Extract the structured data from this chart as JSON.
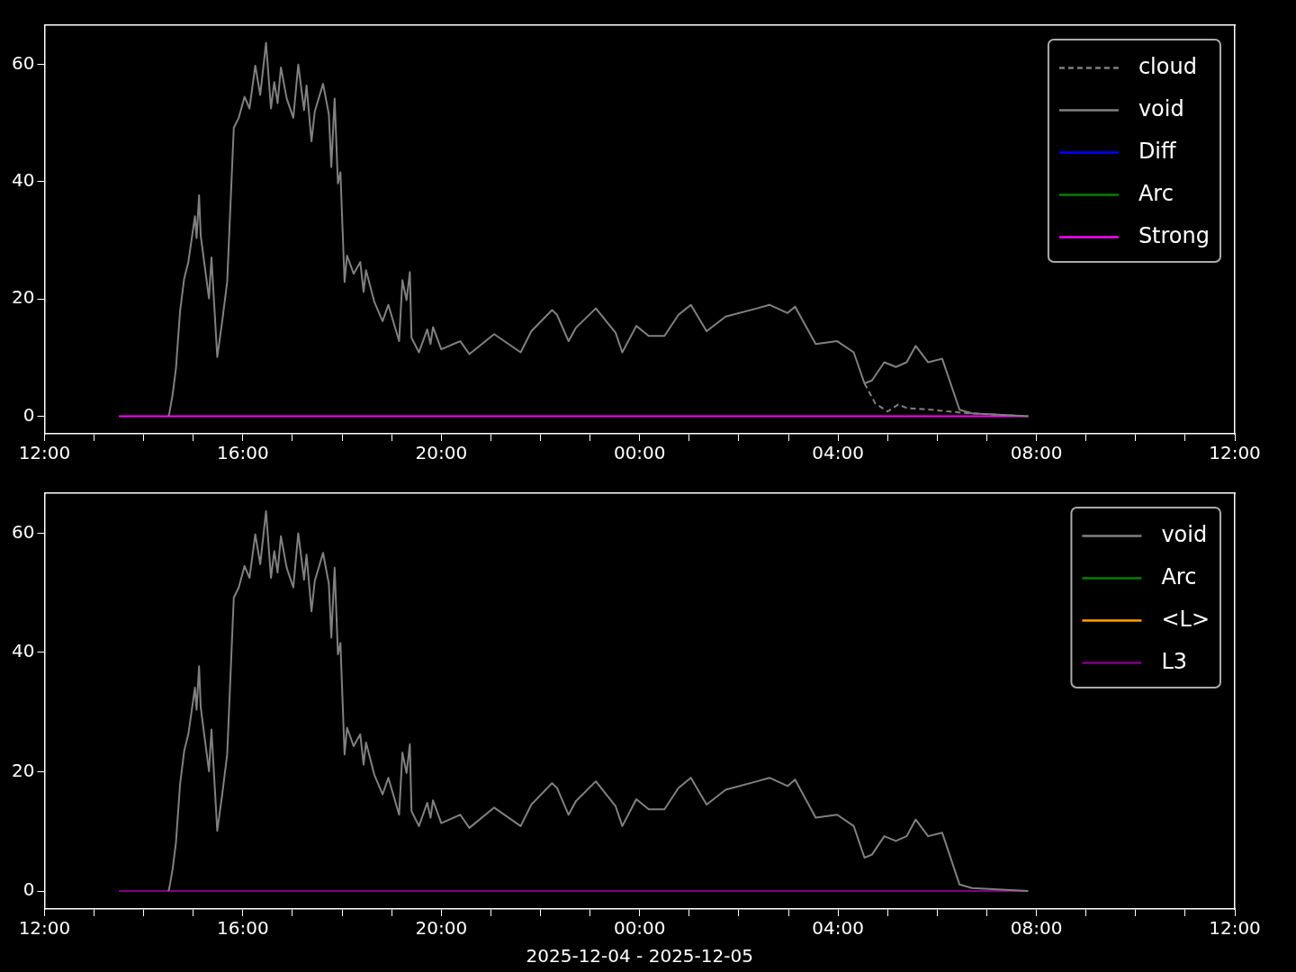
{
  "chart_data": [
    {
      "type": "line",
      "marker": "none",
      "legend": "top right",
      "grid": false,
      "xlim": [
        "2025-12-04T12:00",
        "2025-12-05T12:00"
      ],
      "ylim": [
        -3,
        66.7
      ],
      "yticks": [
        0,
        20,
        40,
        60
      ],
      "xticks": [
        {
          "value": "2025-12-04T12:00",
          "label": "12:00"
        },
        {
          "value": "2025-12-04T13:00",
          "label": null
        },
        {
          "value": "2025-12-04T14:00",
          "label": null
        },
        {
          "value": "2025-12-04T15:00",
          "label": null
        },
        {
          "value": "2025-12-04T16:00",
          "label": "16:00"
        },
        {
          "value": "2025-12-04T17:00",
          "label": null
        },
        {
          "value": "2025-12-04T18:00",
          "label": null
        },
        {
          "value": "2025-12-04T19:00",
          "label": null
        },
        {
          "value": "2025-12-04T20:00",
          "label": "20:00"
        },
        {
          "value": "2025-12-04T21:00",
          "label": null
        },
        {
          "value": "2025-12-04T22:00",
          "label": null
        },
        {
          "value": "2025-12-04T23:00",
          "label": null
        },
        {
          "value": "2025-12-05T00:00",
          "label": "00:00"
        },
        {
          "value": "2025-12-05T01:00",
          "label": null
        },
        {
          "value": "2025-12-05T02:00",
          "label": null
        },
        {
          "value": "2025-12-05T03:00",
          "label": null
        },
        {
          "value": "2025-12-05T04:00",
          "label": "04:00"
        },
        {
          "value": "2025-12-05T05:00",
          "label": null
        },
        {
          "value": "2025-12-05T06:00",
          "label": null
        },
        {
          "value": "2025-12-05T07:00",
          "label": null
        },
        {
          "value": "2025-12-05T08:00",
          "label": "08:00"
        },
        {
          "value": "2025-12-05T09:00",
          "label": null
        },
        {
          "value": "2025-12-05T10:00",
          "label": null
        },
        {
          "value": "2025-12-05T11:00",
          "label": null
        },
        {
          "value": "2025-12-05T12:00",
          "label": "12:00"
        }
      ],
      "series": [
        {
          "name": "cloud",
          "color": "#808080",
          "line_style": "dashed",
          "x": [
            "2025-12-05T04:32",
            "2025-12-05T04:45",
            "2025-12-05T05:00",
            "2025-12-05T05:13",
            "2025-12-05T05:23",
            "2025-12-05T05:53",
            "2025-12-05T06:15",
            "2025-12-05T06:36",
            "2025-12-05T07:50"
          ],
          "values": [
            5.6,
            2.2,
            0.8,
            2.0,
            1.4,
            1.1,
            0.8,
            0.5,
            0
          ]
        },
        {
          "name": "void",
          "color": "#808080",
          "x": [
            "2025-12-04T14:30",
            "2025-12-04T14:31",
            "2025-12-04T14:35",
            "2025-12-04T14:39",
            "2025-12-04T14:44",
            "2025-12-04T14:49",
            "2025-12-04T14:54",
            "2025-12-04T15:02",
            "2025-12-04T15:04",
            "2025-12-04T15:07",
            "2025-12-04T15:09",
            "2025-12-04T15:19",
            "2025-12-04T15:22",
            "2025-12-04T15:29",
            "2025-12-04T15:35",
            "2025-12-04T15:41",
            "2025-12-04T15:49",
            "2025-12-04T15:55",
            "2025-12-04T16:02",
            "2025-12-04T16:08",
            "2025-12-04T16:15",
            "2025-12-04T16:21",
            "2025-12-04T16:28",
            "2025-12-04T16:34",
            "2025-12-04T16:38",
            "2025-12-04T16:42",
            "2025-12-04T16:46",
            "2025-12-04T16:53",
            "2025-12-04T17:01",
            "2025-12-04T17:07",
            "2025-12-04T17:14",
            "2025-12-04T17:17",
            "2025-12-04T17:23",
            "2025-12-04T17:27",
            "2025-12-04T17:37",
            "2025-12-04T17:44",
            "2025-12-04T17:47",
            "2025-12-04T17:51",
            "2025-12-04T17:55",
            "2025-12-04T17:58",
            "2025-12-04T18:03",
            "2025-12-04T18:06",
            "2025-12-04T18:14",
            "2025-12-04T18:22",
            "2025-12-04T18:26",
            "2025-12-04T18:29",
            "2025-12-04T18:39",
            "2025-12-04T18:49",
            "2025-12-04T18:56",
            "2025-12-04T19:09",
            "2025-12-04T19:13",
            "2025-12-04T19:18",
            "2025-12-04T19:22",
            "2025-12-04T19:24",
            "2025-12-04T19:33",
            "2025-12-04T19:43",
            "2025-12-04T19:47",
            "2025-12-04T19:50",
            "2025-12-04T20:00",
            "2025-12-04T20:23",
            "2025-12-04T20:34",
            "2025-12-04T21:04",
            "2025-12-04T21:36",
            "2025-12-04T21:49",
            "2025-12-04T22:14",
            "2025-12-04T22:20",
            "2025-12-04T22:34",
            "2025-12-04T22:43",
            "2025-12-04T23:07",
            "2025-12-04T23:31",
            "2025-12-04T23:39",
            "2025-12-04T23:56",
            "2025-12-05T00:11",
            "2025-12-05T00:30",
            "2025-12-05T00:47",
            "2025-12-05T01:02",
            "2025-12-05T01:21",
            "2025-12-05T01:44",
            "2025-12-05T02:22",
            "2025-12-05T02:37",
            "2025-12-05T02:59",
            "2025-12-05T03:08",
            "2025-12-05T03:33",
            "2025-12-05T03:59",
            "2025-12-05T04:19",
            "2025-12-05T04:32",
            "2025-12-05T04:41",
            "2025-12-05T04:56",
            "2025-12-05T05:10",
            "2025-12-05T05:23",
            "2025-12-05T05:34",
            "2025-12-05T05:49",
            "2025-12-05T06:06",
            "2025-12-05T06:27",
            "2025-12-05T06:42",
            "2025-12-05T07:50"
          ],
          "values": [
            0,
            0.5,
            3.7,
            8.1,
            17.9,
            23.5,
            26.3,
            34.1,
            30.4,
            37.7,
            30.8,
            20.1,
            27.1,
            10.1,
            16.2,
            22.9,
            49.2,
            50.9,
            54.5,
            52.5,
            59.8,
            54.8,
            63.7,
            52.5,
            57.0,
            53.4,
            59.5,
            54.2,
            50.9,
            60.0,
            52.2,
            56.4,
            46.9,
            52.0,
            56.7,
            51.5,
            42.5,
            54.2,
            39.7,
            41.6,
            22.9,
            27.4,
            24.3,
            26.3,
            21.2,
            24.9,
            19.5,
            16.2,
            19.0,
            12.8,
            23.2,
            19.8,
            24.6,
            13.4,
            10.9,
            14.8,
            12.3,
            15.2,
            11.4,
            12.8,
            10.6,
            14.0,
            10.9,
            14.5,
            18.1,
            17.3,
            12.8,
            15.1,
            18.4,
            14.2,
            10.9,
            15.4,
            13.7,
            13.7,
            17.3,
            19.0,
            14.5,
            17.0,
            18.4,
            19.0,
            17.6,
            18.7,
            12.3,
            12.8,
            10.9,
            5.6,
            6.1,
            9.2,
            8.4,
            9.2,
            12.0,
            9.2,
            9.8,
            1.1,
            0.5,
            0
          ]
        },
        {
          "name": "Diff",
          "color": "#0000ff",
          "values": [
            null,
            null
          ]
        },
        {
          "name": "Arc",
          "color": "#008000",
          "values": [
            null,
            null
          ]
        },
        {
          "name": "Strong",
          "color": "#ff00ff",
          "x": [
            "2025-12-04T13:30",
            "2025-12-05T07:50"
          ],
          "values": [
            0,
            0
          ]
        }
      ]
    },
    {
      "type": "line",
      "marker": "none",
      "legend": "top right",
      "grid": false,
      "xlabel": "2025-12-04 - 2025-12-05",
      "xlim": [
        "2025-12-04T12:00",
        "2025-12-05T12:00"
      ],
      "ylim": [
        -3,
        66.7
      ],
      "yticks": [
        0,
        20,
        40,
        60
      ],
      "xticks": [
        {
          "value": "2025-12-04T12:00",
          "label": "12:00"
        },
        {
          "value": "2025-12-04T13:00",
          "label": null
        },
        {
          "value": "2025-12-04T14:00",
          "label": null
        },
        {
          "value": "2025-12-04T15:00",
          "label": null
        },
        {
          "value": "2025-12-04T16:00",
          "label": "16:00"
        },
        {
          "value": "2025-12-04T17:00",
          "label": null
        },
        {
          "value": "2025-12-04T18:00",
          "label": null
        },
        {
          "value": "2025-12-04T19:00",
          "label": null
        },
        {
          "value": "2025-12-04T20:00",
          "label": "20:00"
        },
        {
          "value": "2025-12-04T21:00",
          "label": null
        },
        {
          "value": "2025-12-04T22:00",
          "label": null
        },
        {
          "value": "2025-12-04T23:00",
          "label": null
        },
        {
          "value": "2025-12-05T00:00",
          "label": "00:00"
        },
        {
          "value": "2025-12-05T01:00",
          "label": null
        },
        {
          "value": "2025-12-05T02:00",
          "label": null
        },
        {
          "value": "2025-12-05T03:00",
          "label": null
        },
        {
          "value": "2025-12-05T04:00",
          "label": "04:00"
        },
        {
          "value": "2025-12-05T05:00",
          "label": null
        },
        {
          "value": "2025-12-05T06:00",
          "label": null
        },
        {
          "value": "2025-12-05T07:00",
          "label": null
        },
        {
          "value": "2025-12-05T08:00",
          "label": "08:00"
        },
        {
          "value": "2025-12-05T09:00",
          "label": null
        },
        {
          "value": "2025-12-05T10:00",
          "label": null
        },
        {
          "value": "2025-12-05T11:00",
          "label": null
        },
        {
          "value": "2025-12-05T12:00",
          "label": "12:00"
        }
      ],
      "series": [
        {
          "name": "void",
          "color": "#808080",
          "x": [
            "2025-12-04T14:30",
            "2025-12-04T14:31",
            "2025-12-04T14:35",
            "2025-12-04T14:39",
            "2025-12-04T14:44",
            "2025-12-04T14:49",
            "2025-12-04T14:54",
            "2025-12-04T15:02",
            "2025-12-04T15:04",
            "2025-12-04T15:07",
            "2025-12-04T15:09",
            "2025-12-04T15:19",
            "2025-12-04T15:22",
            "2025-12-04T15:29",
            "2025-12-04T15:35",
            "2025-12-04T15:41",
            "2025-12-04T15:49",
            "2025-12-04T15:55",
            "2025-12-04T16:02",
            "2025-12-04T16:08",
            "2025-12-04T16:15",
            "2025-12-04T16:21",
            "2025-12-04T16:28",
            "2025-12-04T16:34",
            "2025-12-04T16:38",
            "2025-12-04T16:42",
            "2025-12-04T16:46",
            "2025-12-04T16:53",
            "2025-12-04T17:01",
            "2025-12-04T17:07",
            "2025-12-04T17:14",
            "2025-12-04T17:17",
            "2025-12-04T17:23",
            "2025-12-04T17:27",
            "2025-12-04T17:37",
            "2025-12-04T17:44",
            "2025-12-04T17:47",
            "2025-12-04T17:51",
            "2025-12-04T17:55",
            "2025-12-04T17:58",
            "2025-12-04T18:03",
            "2025-12-04T18:06",
            "2025-12-04T18:14",
            "2025-12-04T18:22",
            "2025-12-04T18:26",
            "2025-12-04T18:29",
            "2025-12-04T18:39",
            "2025-12-04T18:49",
            "2025-12-04T18:56",
            "2025-12-04T19:09",
            "2025-12-04T19:13",
            "2025-12-04T19:18",
            "2025-12-04T19:22",
            "2025-12-04T19:24",
            "2025-12-04T19:33",
            "2025-12-04T19:43",
            "2025-12-04T19:47",
            "2025-12-04T19:50",
            "2025-12-04T20:00",
            "2025-12-04T20:23",
            "2025-12-04T20:34",
            "2025-12-04T21:04",
            "2025-12-04T21:36",
            "2025-12-04T21:49",
            "2025-12-04T22:14",
            "2025-12-04T22:20",
            "2025-12-04T22:34",
            "2025-12-04T22:43",
            "2025-12-04T23:07",
            "2025-12-04T23:31",
            "2025-12-04T23:39",
            "2025-12-04T23:56",
            "2025-12-05T00:11",
            "2025-12-05T00:30",
            "2025-12-05T00:47",
            "2025-12-05T01:02",
            "2025-12-05T01:21",
            "2025-12-05T01:44",
            "2025-12-05T02:22",
            "2025-12-05T02:37",
            "2025-12-05T02:59",
            "2025-12-05T03:08",
            "2025-12-05T03:33",
            "2025-12-05T03:59",
            "2025-12-05T04:19",
            "2025-12-05T04:32",
            "2025-12-05T04:41",
            "2025-12-05T04:56",
            "2025-12-05T05:10",
            "2025-12-05T05:23",
            "2025-12-05T05:34",
            "2025-12-05T05:49",
            "2025-12-05T06:06",
            "2025-12-05T06:27",
            "2025-12-05T06:42",
            "2025-12-05T07:50"
          ],
          "values": [
            0,
            0.5,
            3.7,
            8.1,
            17.9,
            23.5,
            26.3,
            34.1,
            30.4,
            37.7,
            30.8,
            20.1,
            27.1,
            10.1,
            16.2,
            22.9,
            49.2,
            50.9,
            54.5,
            52.5,
            59.8,
            54.8,
            63.7,
            52.5,
            57.0,
            53.4,
            59.5,
            54.2,
            50.9,
            60.0,
            52.2,
            56.4,
            46.9,
            52.0,
            56.7,
            51.5,
            42.5,
            54.2,
            39.7,
            41.6,
            22.9,
            27.4,
            24.3,
            26.3,
            21.2,
            24.9,
            19.5,
            16.2,
            19.0,
            12.8,
            23.2,
            19.8,
            24.6,
            13.4,
            10.9,
            14.8,
            12.3,
            15.2,
            11.4,
            12.8,
            10.6,
            14.0,
            10.9,
            14.5,
            18.1,
            17.3,
            12.8,
            15.1,
            18.4,
            14.2,
            10.9,
            15.4,
            13.7,
            13.7,
            17.3,
            19.0,
            14.5,
            17.0,
            18.4,
            19.0,
            17.6,
            18.7,
            12.3,
            12.8,
            10.9,
            5.6,
            6.1,
            9.2,
            8.4,
            9.2,
            12.0,
            9.2,
            9.8,
            1.1,
            0.5,
            0
          ]
        },
        {
          "name": "Arc",
          "color": "#008000",
          "values": [
            null,
            null
          ]
        },
        {
          "name": "<L>",
          "color": "#ffa500",
          "values": [
            null,
            null
          ]
        },
        {
          "name": "L3",
          "color": "#800080",
          "x": [
            "2025-12-04T13:30",
            "2025-12-05T07:50"
          ],
          "values": [
            0,
            0
          ]
        }
      ]
    }
  ]
}
